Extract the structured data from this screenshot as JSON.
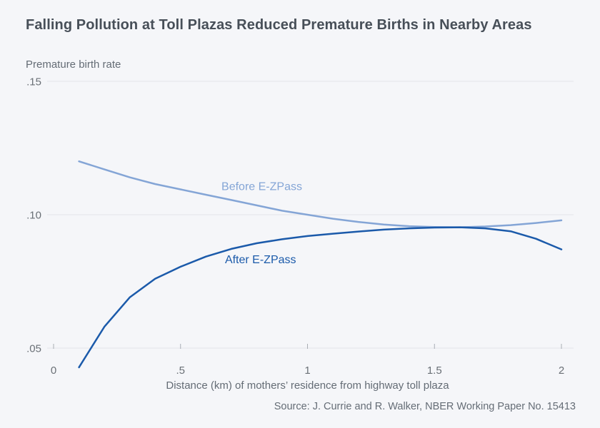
{
  "chart": {
    "title": "Falling Pollution at Toll Plazas Reduced Premature Births in Nearby Areas",
    "ylabel": "Premature birth rate",
    "xlabel": "Distance (km) of mothers’ residence from highway toll plaza",
    "source": "Source: J. Currie and R. Walker, NBER Working Paper No. 15413"
  },
  "chart_data": {
    "type": "line",
    "title": "Falling Pollution at Toll Plazas Reduced Premature Births in Nearby Areas",
    "xlabel": "Distance (km) of mothers’ residence from highway toll plaza",
    "ylabel": "Premature birth rate",
    "xlim": [
      0,
      2
    ],
    "ylim": [
      0.05,
      0.15
    ],
    "grid": true,
    "legend_position": "inline-labels",
    "x_ticks": [
      {
        "value": 0,
        "label": "0"
      },
      {
        "value": 0.5,
        "label": ".5"
      },
      {
        "value": 1,
        "label": "1"
      },
      {
        "value": 1.5,
        "label": "1.5"
      },
      {
        "value": 2,
        "label": "2"
      }
    ],
    "y_ticks": [
      {
        "value": 0.15,
        "label": ".15"
      },
      {
        "value": 0.1,
        "label": ".10"
      },
      {
        "value": 0.05,
        "label": ".05"
      }
    ],
    "x": [
      0.1,
      0.2,
      0.3,
      0.4,
      0.5,
      0.6,
      0.7,
      0.8,
      0.9,
      1.0,
      1.1,
      1.2,
      1.3,
      1.4,
      1.5,
      1.6,
      1.7,
      1.8,
      1.9,
      2.0
    ],
    "series": [
      {
        "name": "Before E-ZPass",
        "color": "#84a5d6",
        "values": [
          0.12,
          0.117,
          0.114,
          0.1115,
          0.1095,
          0.1075,
          0.1055,
          0.1035,
          0.1015,
          0.1,
          0.0985,
          0.0973,
          0.0963,
          0.0957,
          0.0954,
          0.0953,
          0.0956,
          0.0961,
          0.0969,
          0.0979
        ],
        "label_anchor": {
          "x": 0.82,
          "y": 0.1105
        }
      },
      {
        "name": "After E-ZPass",
        "color": "#1b5aaa",
        "values": [
          0.0428,
          0.058,
          0.069,
          0.076,
          0.0805,
          0.0843,
          0.0872,
          0.0893,
          0.0908,
          0.092,
          0.0929,
          0.0937,
          0.0944,
          0.0949,
          0.0952,
          0.0953,
          0.0949,
          0.0938,
          0.091,
          0.087
        ],
        "label_anchor": {
          "x": 0.815,
          "y": 0.0832
        }
      }
    ],
    "colors": {
      "background": "#f5f6f9",
      "title_text": "#474f58",
      "axis_text": "#646c75",
      "tick_text": "#6a7076",
      "gridline": "#e2e4e9",
      "tick_mark": "#a9adb4"
    }
  }
}
